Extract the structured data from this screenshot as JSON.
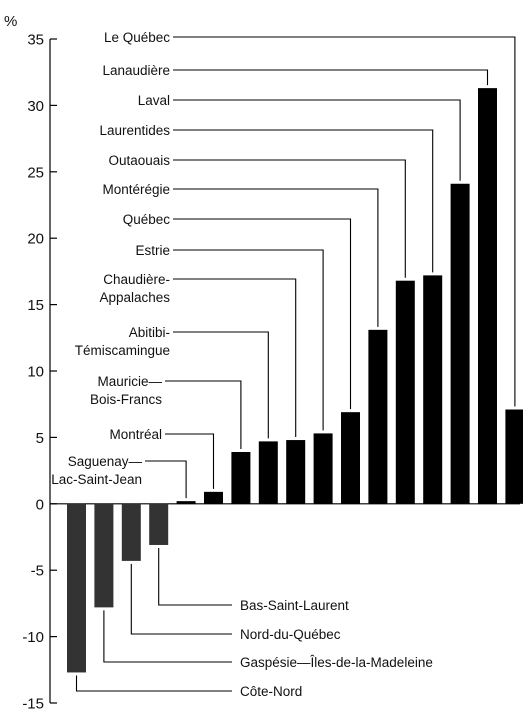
{
  "chart_data": {
    "type": "bar",
    "ylabel": "%",
    "ylim": [
      -15,
      35
    ],
    "yticks": [
      -15,
      -10,
      -5,
      0,
      5,
      10,
      15,
      20,
      25,
      30,
      35
    ],
    "grid": false,
    "colors": {
      "positive": "#000000",
      "negative": "#333333"
    },
    "bars": [
      {
        "region": "Côte-Nord",
        "value": -12.7,
        "label_lines": [
          "Côte-Nord"
        ]
      },
      {
        "region": "Gaspésie—Îles-de-la-Madeleine",
        "value": -7.8,
        "label_lines": [
          "Gaspésie—Îles-de-la-Madeleine"
        ]
      },
      {
        "region": "Nord-du-Québec",
        "value": -4.3,
        "label_lines": [
          "Nord-du-Québec"
        ]
      },
      {
        "region": "Bas-Saint-Laurent",
        "value": -3.1,
        "label_lines": [
          "Bas-Saint-Laurent"
        ]
      },
      {
        "region": "Saguenay—Lac-Saint-Jean",
        "value": 0.2,
        "label_lines": [
          "Saguenay—",
          "Lac-Saint-Jean"
        ]
      },
      {
        "region": "Montréal",
        "value": 0.9,
        "label_lines": [
          "Montréal"
        ]
      },
      {
        "region": "Mauricie—Bois-Francs",
        "value": 3.9,
        "label_lines": [
          "Mauricie—",
          "Bois-Francs"
        ]
      },
      {
        "region": "Abitibi-Témiscamingue",
        "value": 4.7,
        "label_lines": [
          "Abitibi-",
          "Témiscamingue"
        ]
      },
      {
        "region": "Chaudière-Appalaches",
        "value": 4.8,
        "label_lines": [
          "Chaudière-",
          "Appalaches"
        ]
      },
      {
        "region": "Estrie",
        "value": 5.3,
        "label_lines": [
          "Estrie"
        ]
      },
      {
        "region": "Québec",
        "value": 6.9,
        "label_lines": [
          "Québec"
        ]
      },
      {
        "region": "Montérégie",
        "value": 13.1,
        "label_lines": [
          "Montérégie"
        ]
      },
      {
        "region": "Outaouais",
        "value": 16.8,
        "label_lines": [
          "Outaouais"
        ]
      },
      {
        "region": "Laurentides",
        "value": 17.2,
        "label_lines": [
          "Laurentides"
        ]
      },
      {
        "region": "Laval",
        "value": 24.1,
        "label_lines": [
          "Laval"
        ]
      },
      {
        "region": "Lanaudière",
        "value": 31.3,
        "label_lines": [
          "Lanaudière"
        ]
      },
      {
        "region": "Le Québec",
        "value": 7.1,
        "label_lines": [
          "Le Québec"
        ]
      }
    ]
  }
}
